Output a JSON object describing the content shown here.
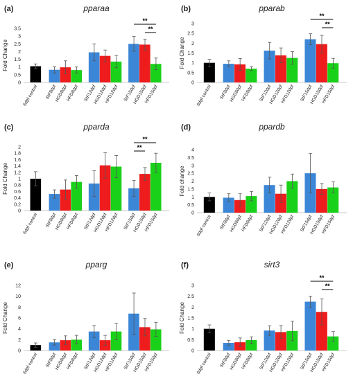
{
  "chart_data": [
    {
      "type": "bar",
      "panel_label": "(a)",
      "title": "pparaa",
      "ylabel": "Fold Change",
      "ylim": [
        0,
        3.5
      ],
      "yticks": [
        "0",
        "0.5",
        "1",
        "1.5",
        "2",
        "2.5",
        "3",
        "3.5"
      ],
      "categories": [
        "6dpf control",
        "StF8dpf",
        "HGD8dpf",
        "HFD8dpf",
        "StF12dpf",
        "HGD12dpf",
        "HFD12dpf",
        "StF15dpf",
        "HGD15dpf",
        "HFD15dpf"
      ],
      "values": [
        1.05,
        0.82,
        0.98,
        0.8,
        1.95,
        1.72,
        1.35,
        2.5,
        2.45,
        1.2
      ],
      "errors": [
        0.15,
        0.2,
        0.42,
        0.2,
        0.55,
        0.38,
        0.4,
        0.48,
        0.35,
        0.38
      ],
      "significance": [
        {
          "from": "StF15dpf",
          "to": "HFD15dpf",
          "label": "**"
        },
        {
          "from": "HGD15dpf",
          "to": "HFD15dpf",
          "label": "**"
        }
      ]
    },
    {
      "type": "bar",
      "panel_label": "(b)",
      "title": "pparab",
      "ylabel": "Fold Change",
      "ylim": [
        0,
        3
      ],
      "yticks": [
        "0",
        "0.5",
        "1",
        "1.5",
        "2",
        "2.5",
        "3"
      ],
      "categories": [
        "6dpf control",
        "StF8dpf",
        "HGD8dpf",
        "HFD8dpf",
        "StF12dpf",
        "HGD12dpf",
        "HFD12dpf",
        "StF15dpf",
        "HGD15dpf",
        "HFD15dpf"
      ],
      "values": [
        1.0,
        0.95,
        0.92,
        0.7,
        1.62,
        1.38,
        1.25,
        2.2,
        1.95,
        0.98
      ],
      "errors": [
        0.18,
        0.15,
        0.3,
        0.1,
        0.42,
        0.38,
        0.32,
        0.28,
        0.45,
        0.25
      ],
      "significance": [
        {
          "from": "StF15dpf",
          "to": "HFD15dpf",
          "label": "**"
        },
        {
          "from": "HGD15dpf",
          "to": "HFD15dpf",
          "label": "**"
        }
      ]
    },
    {
      "type": "bar",
      "panel_label": "(c)",
      "title": "pparda",
      "ylabel": "Fold Change",
      "ylim": [
        0,
        2
      ],
      "yticks": [
        "0",
        "0.2",
        "0.4",
        "0.6",
        "0.8",
        "1",
        "1.2",
        "1.4",
        "1.6",
        "1.8",
        "2"
      ],
      "categories": [
        "6dpf control",
        "StF8dpf",
        "HGD8dpf",
        "HFD8dpf",
        "StF12dpf",
        "HGD12dpf",
        "HFD12dpf",
        "StF15dpf",
        "HGD15dpf",
        "HFD15dpf"
      ],
      "values": [
        1.0,
        0.52,
        0.66,
        0.9,
        0.85,
        1.42,
        1.38,
        0.7,
        1.15,
        1.5
      ],
      "errors": [
        0.22,
        0.13,
        0.3,
        0.2,
        0.4,
        0.4,
        0.35,
        0.25,
        0.2,
        0.3
      ],
      "significance": [
        {
          "from": "StF15dpf",
          "to": "HFD15dpf",
          "label": "**"
        },
        {
          "from": "StF15dpf",
          "to": "HGD15dpf",
          "label": "**"
        }
      ]
    },
    {
      "type": "bar",
      "panel_label": "(d)",
      "title": "ppardb",
      "ylabel": "Fold change",
      "ylim": [
        0,
        4
      ],
      "yticks": [
        "0",
        "0.5",
        "1",
        "1.5",
        "2",
        "2.5",
        "3",
        "3.5",
        "4"
      ],
      "categories": [
        "6dpf control",
        "StF8dpf",
        "HGD8dpf",
        "HFD8dpf",
        "StF12dpf",
        "HGD12dpf",
        "HFD12dpf",
        "StF15dpf",
        "HGD15dpf",
        "HFD15dpf"
      ],
      "values": [
        1.0,
        0.95,
        0.8,
        1.05,
        1.75,
        1.2,
        2.0,
        2.5,
        1.5,
        1.6
      ],
      "errors": [
        0.25,
        0.25,
        0.4,
        0.3,
        0.5,
        0.55,
        0.45,
        1.25,
        0.35,
        0.35
      ],
      "significance": []
    },
    {
      "type": "bar",
      "panel_label": "(e)",
      "title": "pparg",
      "ylabel": "Fold Change",
      "ylim": [
        0,
        12
      ],
      "yticks": [
        "0",
        "2",
        "4",
        "6",
        "8",
        "10",
        "12"
      ],
      "categories": [
        "6dpf control",
        "StF8dpf",
        "HGD8dpf",
        "HFD8dpf",
        "StF12dpf",
        "HGD12dpf",
        "HFD12dpf",
        "StF15dpf",
        "HGD15dpf",
        "HFD15dpf"
      ],
      "values": [
        1.0,
        1.5,
        1.9,
        2.0,
        3.5,
        1.9,
        3.5,
        6.8,
        4.3,
        3.9
      ],
      "errors": [
        0.4,
        0.5,
        0.8,
        0.8,
        1.1,
        0.9,
        1.5,
        3.8,
        1.6,
        1.3
      ],
      "significance": []
    },
    {
      "type": "bar",
      "panel_label": "(f)",
      "title": "sirt3",
      "ylabel": "Fold Change",
      "ylim": [
        0,
        3
      ],
      "yticks": [
        "0",
        "0.5",
        "1",
        "1.5",
        "2",
        "2.5",
        "3"
      ],
      "categories": [
        "6dpf control",
        "StF8dpf",
        "HGD8dpf",
        "HFD8dpf",
        "StF12dpf",
        "HGD12dpf",
        "HFD12dpf",
        "StF15dpf",
        "HGD15dpf",
        "HFD15dpf"
      ],
      "values": [
        1.0,
        0.35,
        0.38,
        0.48,
        0.92,
        0.85,
        0.9,
        2.25,
        1.78,
        0.65
      ],
      "errors": [
        0.18,
        0.12,
        0.2,
        0.15,
        0.22,
        0.3,
        0.45,
        0.25,
        0.6,
        0.22
      ],
      "significance": [
        {
          "from": "StF15dpf",
          "to": "HFD15dpf",
          "label": "**"
        },
        {
          "from": "HGD15dpf",
          "to": "HFD15dpf",
          "label": "**"
        }
      ]
    }
  ],
  "colors": {
    "control": "#000000",
    "StF": "#3b86d6",
    "HGD": "#ee1c1c",
    "HFD": "#19d119",
    "axis": "#c8c8c8",
    "text": "#222222"
  }
}
